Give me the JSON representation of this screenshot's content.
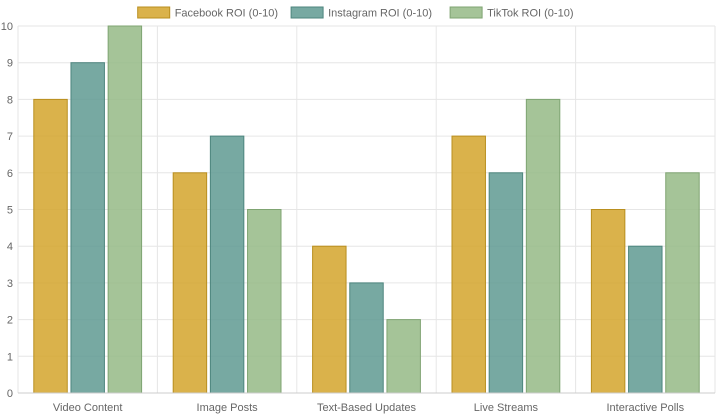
{
  "chart_data": {
    "type": "bar",
    "categories": [
      "Video Content",
      "Image Posts",
      "Text-Based Updates",
      "Live Streams",
      "Interactive Polls"
    ],
    "series": [
      {
        "name": "Facebook ROI (0-10)",
        "values": [
          8,
          6,
          4,
          7,
          5
        ],
        "color": "#d4a52c",
        "border": "#b98f1f"
      },
      {
        "name": "Instagram ROI (0-10)",
        "values": [
          9,
          7,
          3,
          6,
          4
        ],
        "color": "#5f9a92",
        "border": "#4d857e"
      },
      {
        "name": "TikTok ROI (0-10)",
        "values": [
          10,
          5,
          2,
          8,
          6
        ],
        "color": "#95ba86",
        "border": "#7fa472"
      }
    ],
    "ylim": [
      0,
      10
    ],
    "yticks": [
      "0",
      "1",
      "2",
      "3",
      "4",
      "5",
      "6",
      "7",
      "8",
      "9",
      "10"
    ],
    "grid": true,
    "legend_position": "top-center"
  }
}
